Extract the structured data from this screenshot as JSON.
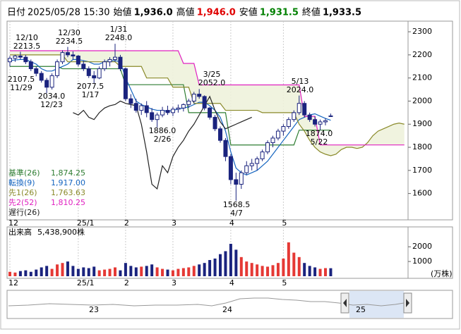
{
  "chart_data": {
    "type": "candlestick",
    "quote": [
      {
        "label": "日付",
        "value": "2025/05/28 15:30"
      },
      {
        "label": "始値",
        "value": "1,936.0"
      },
      {
        "label": "高値",
        "value": "1,946.0",
        "color": "#e00000"
      },
      {
        "label": "安値",
        "value": "1,931.5",
        "color": "#008000"
      },
      {
        "label": "終値",
        "value": "1,933.5"
      }
    ],
    "ylim": [
      1486,
      2346
    ],
    "yticks": [
      1600,
      1700,
      1800,
      1900,
      2000,
      2100,
      2200,
      2300
    ],
    "xticks": [
      {
        "value": 0,
        "label": "12"
      },
      {
        "value": 13,
        "label": "25/1"
      },
      {
        "value": 22,
        "label": "2"
      },
      {
        "value": 31,
        "label": "3"
      },
      {
        "value": 42,
        "label": "4"
      },
      {
        "value": 52,
        "label": "5"
      }
    ],
    "up_color": "#ffffff",
    "down_color": "#1a237e",
    "open": [
      2170,
      2185,
      2195,
      2190,
      2170,
      2140,
      2120,
      2090,
      2060,
      2110,
      2170,
      2210,
      2200,
      2195,
      2160,
      2140,
      2110,
      2100,
      2140,
      2170,
      2180,
      2190,
      2140,
      2010,
      1990,
      1960,
      1980,
      1950,
      1920,
      1940,
      1960,
      1950,
      1965,
      1970,
      1985,
      2000,
      2030,
      2020,
      1970,
      1930,
      1880,
      1830,
      1760,
      1660,
      1640,
      1690,
      1720,
      1730,
      1750,
      1780,
      1820,
      1840,
      1870,
      1890,
      1920,
      1950,
      1990,
      1940,
      1920,
      1900,
      1910,
      1936
    ],
    "high": [
      2195,
      2200,
      2213.5,
      2200,
      2180,
      2150,
      2130,
      2100,
      2120,
      2180,
      2220,
      2234.5,
      2215,
      2200,
      2175,
      2150,
      2130,
      2150,
      2180,
      2190,
      2248,
      2200,
      2145,
      2030,
      2010,
      1990,
      2000,
      1970,
      1950,
      1975,
      1980,
      1975,
      1985,
      1990,
      2010,
      2040,
      2052,
      2025,
      1975,
      1940,
      1890,
      1840,
      1770,
      1690,
      1700,
      1740,
      1750,
      1760,
      1790,
      1830,
      1850,
      1880,
      1900,
      1930,
      1960,
      2024,
      2000,
      1950,
      1935,
      1920,
      1925,
      1946
    ],
    "low": [
      2150,
      2170,
      2180,
      2160,
      2130,
      2107.5,
      2080,
      2034,
      2050,
      2100,
      2160,
      2190,
      2180,
      2150,
      2130,
      2100,
      2077.5,
      2095,
      2130,
      2150,
      2170,
      2130,
      2000,
      1970,
      1950,
      1940,
      1930,
      1910,
      1886,
      1930,
      1940,
      1935,
      1950,
      1955,
      1970,
      1990,
      2010,
      1960,
      1920,
      1870,
      1820,
      1740,
      1640,
      1568.5,
      1620,
      1680,
      1700,
      1700,
      1740,
      1770,
      1800,
      1830,
      1850,
      1880,
      1910,
      1940,
      1930,
      1910,
      1890,
      1874,
      1895,
      1931.5
    ],
    "close": [
      2185,
      2195,
      2190,
      2170,
      2140,
      2120,
      2090,
      2060,
      2110,
      2170,
      2210,
      2200,
      2195,
      2160,
      2140,
      2110,
      2100,
      2140,
      2170,
      2180,
      2190,
      2140,
      2010,
      1990,
      1960,
      1980,
      1950,
      1920,
      1940,
      1960,
      1950,
      1965,
      1970,
      1985,
      2000,
      2030,
      2020,
      1970,
      1930,
      1880,
      1830,
      1760,
      1660,
      1640,
      1690,
      1720,
      1730,
      1750,
      1780,
      1820,
      1840,
      1870,
      1890,
      1920,
      1950,
      1990,
      1940,
      1920,
      1900,
      1910,
      1915,
      1933.5
    ],
    "series": [
      {
        "name": "基準(26)",
        "color": "#2e7d32",
        "last_label": "1,874.25",
        "values": [
          2150,
          2150,
          2150,
          2150,
          2150,
          2150,
          2150,
          2150,
          2150,
          2150,
          2140,
          2140,
          2140,
          2140,
          2140,
          2140,
          2140,
          2140,
          2140,
          2140,
          2140,
          2140,
          2071,
          2071,
          2071,
          2071,
          2071,
          2071,
          2071,
          2071,
          2071,
          2071,
          2071,
          2071,
          1950,
          1950,
          1950,
          1950,
          1950,
          1950,
          1950,
          1950,
          1810,
          1810,
          1810,
          1810,
          1810,
          1810,
          1810,
          1810,
          1810,
          1810,
          1810,
          1810,
          1810,
          1874.25,
          1874.25,
          1874.25,
          1874.25,
          1874.25,
          1874.25,
          1874.25
        ]
      },
      {
        "name": "転換(9)",
        "color": "#1565c0",
        "last_label": "1,917.00",
        "values": [
          2175,
          2178,
          2180,
          2180,
          2170,
          2160,
          2140,
          2130,
          2130,
          2140,
          2150,
          2160,
          2180,
          2180,
          2175,
          2170,
          2160,
          2160,
          2170,
          2175,
          2175,
          2170,
          2100,
          2050,
          2000,
          1985,
          1975,
          1965,
          1960,
          1960,
          1955,
          1960,
          1965,
          1970,
          1975,
          1985,
          1995,
          1995,
          1980,
          1960,
          1930,
          1870,
          1780,
          1710,
          1690,
          1680,
          1690,
          1700,
          1720,
          1740,
          1770,
          1800,
          1830,
          1860,
          1890,
          1920,
          1930,
          1940,
          1945,
          1935,
          1925,
          1917
        ]
      },
      {
        "name": "先1(26)",
        "color": "#8a8a2a",
        "last_label": "1,763.63",
        "values": [
          2200,
          2200,
          2200,
          2200,
          2200,
          2200,
          2200,
          2200,
          2200,
          2200,
          2200,
          2170,
          2170,
          2170,
          2170,
          2170,
          2170,
          2170,
          2170,
          2170,
          2170,
          2150,
          2150,
          2150,
          2150,
          2150,
          2100,
          2100,
          2100,
          2100,
          2100,
          2060,
          2060,
          2060,
          2060,
          1990,
          1990,
          1990,
          1990,
          1990,
          1990,
          1960,
          1960,
          1960,
          1960,
          1960,
          1960,
          1960,
          1950,
          1950,
          1950,
          1950,
          1950,
          1950,
          1950,
          1900,
          1870,
          1830,
          1800,
          1780,
          1770,
          1763.63,
          1770,
          1790,
          1800,
          1800,
          1795,
          1800,
          1820,
          1850,
          1870,
          1880,
          1890,
          1900,
          1905,
          1900
        ]
      },
      {
        "name": "先2(52)",
        "color": "#e020c0",
        "last_label": "1,810.25",
        "values": [
          2218,
          2218,
          2218,
          2218,
          2218,
          2218,
          2218,
          2218,
          2218,
          2218,
          2218,
          2218,
          2218,
          2218,
          2218,
          2218,
          2218,
          2218,
          2218,
          2218,
          2218,
          2218,
          2218,
          2218,
          2218,
          2218,
          2218,
          2218,
          2218,
          2218,
          2218,
          2218,
          2218,
          2163,
          2163,
          2163,
          2070,
          2070,
          2070,
          2070,
          2070,
          2070,
          2070,
          2070,
          2070,
          2070,
          2070,
          2070,
          2070,
          2070,
          2070,
          2070,
          2070,
          2070,
          2070,
          2070,
          1934,
          1934,
          1934,
          1810.25,
          1810.25,
          1810.25,
          1810.25,
          1810.25,
          1810.25,
          1810.25,
          1810.25,
          1810.25,
          1810.25,
          1810.25,
          1810.25,
          1810.25,
          1810.25,
          1810.25,
          1810.25,
          1810.25
        ]
      },
      {
        "name": "遅行(26)",
        "color": "#222222",
        "values": [
          null,
          null,
          null,
          null,
          null,
          null,
          null,
          null,
          null,
          null,
          null,
          null,
          1950,
          1940,
          1960,
          1930,
          1920,
          1950,
          1970,
          1980,
          1985,
          2000,
          1990,
          1985,
          1980,
          1900,
          1780,
          1640,
          1620,
          1720,
          1690,
          1760,
          1800,
          1830,
          1870,
          1900,
          1940,
          1980,
          2020,
          1960,
          1910,
          1880,
          1890,
          1900,
          1910,
          1920,
          1930
        ]
      }
    ],
    "annotations": [
      {
        "text": [
          "12/10",
          "2213.5"
        ]
      },
      {
        "text": [
          "2107.5",
          "11/29"
        ]
      },
      {
        "text": [
          "2034.0",
          "12/23"
        ]
      },
      {
        "text": [
          "12/30",
          "2234.5"
        ]
      },
      {
        "text": [
          "2077.5",
          "1/17"
        ]
      },
      {
        "text": [
          "1/31",
          "2248.0"
        ]
      },
      {
        "text": [
          "1886.0",
          "2/26"
        ]
      },
      {
        "text": [
          "3/25",
          "2052.0"
        ]
      },
      {
        "text": [
          "5/13",
          "2024.0"
        ]
      },
      {
        "text": [
          "1874.0",
          "5/22"
        ]
      },
      {
        "text": [
          "1568.5",
          "4/7"
        ]
      }
    ],
    "volume": {
      "title": "出来高",
      "total_label": "5,438,900株",
      "unit": "(万株)",
      "up_color": "#e53935",
      "down_color": "#1a237e",
      "ylim": [
        0,
        3350
      ],
      "yticks": [
        1000,
        2000
      ],
      "values": [
        300,
        250,
        350,
        400,
        300,
        450,
        600,
        700,
        500,
        800,
        900,
        1000,
        700,
        500,
        600,
        550,
        650,
        400,
        450,
        500,
        600,
        400,
        900,
        700,
        600,
        650,
        700,
        800,
        600,
        500,
        450,
        400,
        500,
        550,
        600,
        700,
        800,
        900,
        1100,
        1200,
        1500,
        1700,
        2200,
        1800,
        1300,
        1000,
        900,
        800,
        700,
        650,
        750,
        900,
        1200,
        2300,
        1600,
        1300,
        900,
        700,
        600,
        500,
        550,
        543.89
      ]
    },
    "navigator": [
      "23",
      "24",
      "25"
    ]
  }
}
